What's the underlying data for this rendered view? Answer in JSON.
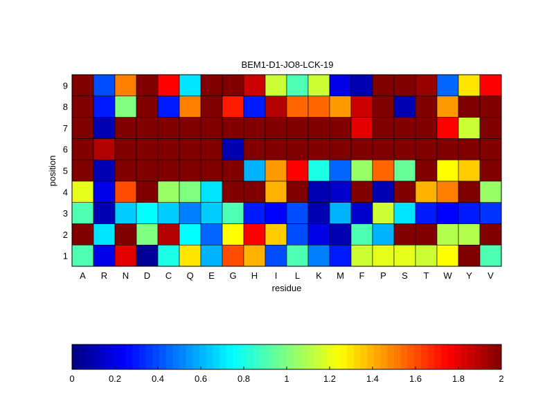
{
  "chart_data": {
    "type": "heatmap",
    "title": "BEM1-D1-JO8-LCK-19",
    "xlabel": "residue",
    "ylabel": "position",
    "x_categories": [
      "A",
      "R",
      "N",
      "D",
      "C",
      "Q",
      "E",
      "G",
      "H",
      "I",
      "L",
      "K",
      "M",
      "F",
      "P",
      "S",
      "T",
      "W",
      "Y",
      "V"
    ],
    "y_categories": [
      "1",
      "2",
      "3",
      "4",
      "5",
      "6",
      "7",
      "8",
      "9"
    ],
    "values": [
      [
        0.9,
        0.2,
        1.8,
        0.05,
        0.8,
        1.3,
        0.6,
        1.6,
        1.4,
        0.4,
        0.9,
        0.5,
        0.3,
        1.15,
        1.2,
        1.2,
        1.15,
        1.25,
        2.0,
        0.9
      ],
      [
        2.0,
        0.7,
        2.0,
        1.0,
        1.9,
        0.75,
        0.45,
        1.25,
        1.75,
        1.35,
        0.4,
        0.2,
        0.1,
        0.9,
        0.6,
        2.0,
        2.0,
        1.1,
        1.1,
        2.0
      ],
      [
        0.9,
        0.1,
        0.65,
        0.75,
        0.65,
        0.5,
        0.65,
        0.9,
        0.3,
        0.25,
        0.4,
        0.1,
        0.6,
        0.15,
        1.15,
        0.7,
        0.3,
        0.25,
        0.3,
        0.35
      ],
      [
        1.2,
        0.2,
        1.6,
        2.0,
        1.05,
        1.0,
        0.7,
        2.0,
        2.0,
        1.4,
        2.0,
        0.1,
        0.15,
        2.0,
        0.1,
        2.0,
        1.4,
        1.5,
        2.0,
        1.05
      ],
      [
        2.0,
        0.1,
        2.0,
        2.0,
        2.0,
        2.0,
        2.0,
        2.0,
        0.6,
        1.45,
        1.75,
        0.8,
        0.45,
        1.05,
        1.55,
        0.95,
        2.0,
        1.25,
        1.35,
        2.0
      ],
      [
        2.0,
        1.9,
        2.0,
        2.0,
        2.0,
        2.0,
        2.0,
        0.1,
        2.0,
        2.0,
        2.0,
        2.0,
        2.0,
        2.0,
        2.0,
        2.0,
        2.0,
        2.0,
        2.0,
        2.0
      ],
      [
        2.0,
        0.1,
        2.0,
        2.0,
        2.0,
        2.0,
        2.0,
        2.0,
        2.0,
        2.0,
        2.0,
        2.0,
        2.0,
        1.8,
        2.0,
        2.0,
        2.0,
        1.75,
        1.15,
        2.0
      ],
      [
        2.0,
        0.3,
        1.0,
        2.0,
        0.3,
        1.5,
        2.0,
        1.7,
        0.3,
        1.9,
        1.55,
        1.55,
        1.45,
        1.85,
        2.0,
        0.1,
        2.0,
        1.45,
        2.0,
        2.0
      ],
      [
        2.0,
        0.4,
        1.5,
        2.0,
        1.75,
        0.7,
        2.0,
        2.0,
        1.85,
        1.15,
        0.9,
        1.15,
        0.2,
        0.1,
        2.0,
        2.0,
        1.95,
        0.45,
        1.3,
        1.75
      ]
    ],
    "colorbar": {
      "min": 0,
      "max": 2,
      "ticks": [
        "0",
        "0.2",
        "0.4",
        "0.6",
        "0.8",
        "1",
        "1.2",
        "1.4",
        "1.6",
        "1.8",
        "2"
      ],
      "colormap": "jet",
      "placement": "bottom"
    },
    "grid": false
  }
}
